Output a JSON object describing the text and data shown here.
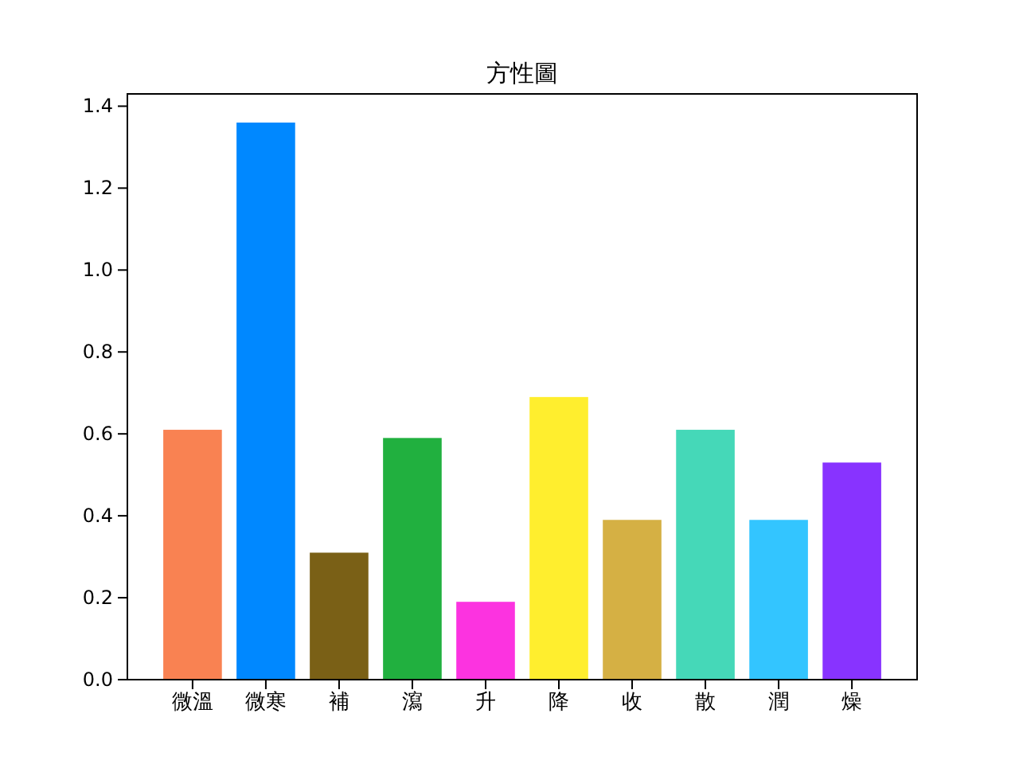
{
  "chart_data": {
    "type": "bar",
    "title": "方性圖",
    "categories": [
      "微溫",
      "微寒",
      "補",
      "瀉",
      "升",
      "降",
      "收",
      "散",
      "潤",
      "燥"
    ],
    "values": [
      0.61,
      1.36,
      0.31,
      0.59,
      0.19,
      0.69,
      0.39,
      0.61,
      0.39,
      0.53
    ],
    "colors": [
      "#f98252",
      "#0088ff",
      "#7a6016",
      "#21b03f",
      "#fc33e0",
      "#ffee2e",
      "#d5b044",
      "#45d8b8",
      "#33c5ff",
      "#8833ff"
    ],
    "ylim": [
      0,
      1.43
    ],
    "yticks": [
      {
        "value": 0,
        "label": "0.0"
      },
      0.2,
      0.4,
      0.6,
      0.8,
      {
        "value": 1,
        "label": "1.0"
      },
      1.2,
      1.4
    ],
    "grid": false
  }
}
